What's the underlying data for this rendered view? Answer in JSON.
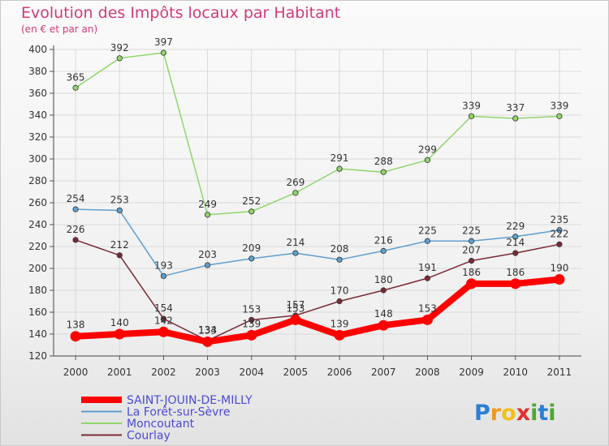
{
  "chart_data": {
    "type": "line",
    "title": "Evolution des Impôts locaux par Habitant",
    "subtitle": "(en € et par an)",
    "x": [
      "2000",
      "2001",
      "2002",
      "2003",
      "2004",
      "2005",
      "2006",
      "2007",
      "2008",
      "2009",
      "2010",
      "2011"
    ],
    "ylim": [
      120,
      400
    ],
    "yticks": [
      120,
      140,
      160,
      180,
      200,
      220,
      240,
      260,
      280,
      300,
      320,
      340,
      360,
      380,
      400
    ],
    "grid": true,
    "legend_position": "bottom-left",
    "series": [
      {
        "name": "Moncoutant",
        "color": "#8fd66a",
        "values": [
          365,
          392,
          397,
          249,
          252,
          269,
          291,
          288,
          299,
          339,
          337,
          339
        ]
      },
      {
        "name": "La Forêt-sur-Sèvre",
        "color": "#5f9fcf",
        "values": [
          254,
          253,
          193,
          203,
          209,
          214,
          208,
          216,
          225,
          225,
          229,
          235
        ]
      },
      {
        "name": "Courlay",
        "color": "#7a2a35",
        "values": [
          226,
          212,
          154,
          134,
          153,
          157,
          170,
          180,
          191,
          207,
          214,
          222
        ]
      },
      {
        "name": "SAINT-JOUIN-DE-MILLY",
        "color": "#ff0000",
        "values": [
          138,
          140,
          142,
          133,
          139,
          153,
          139,
          148,
          153,
          186,
          186,
          190
        ]
      }
    ],
    "legend_order": [
      "SAINT-JOUIN-DE-MILLY",
      "La Forêt-sur-Sèvre",
      "Moncoutant",
      "Courlay"
    ],
    "legend_text_color": "#4a4ad8"
  },
  "brand": {
    "letters": [
      "P",
      "r",
      "o",
      "x",
      "i",
      "t",
      "i"
    ],
    "colors": [
      "#2a7fd6",
      "#f39a1b",
      "#f0c020",
      "#e23030",
      "#4aa832",
      "#2a7fd6",
      "#4aa832"
    ]
  }
}
